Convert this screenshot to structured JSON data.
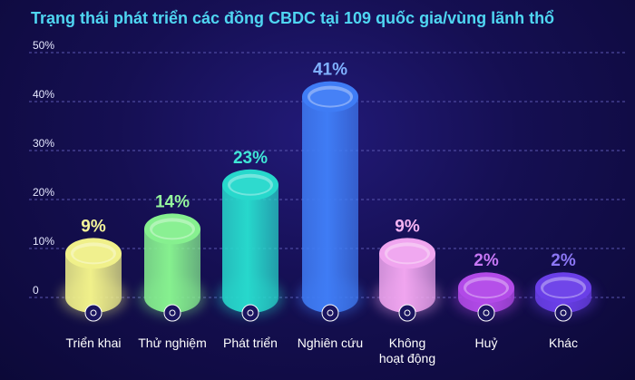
{
  "chart_data": {
    "type": "bar",
    "title": "Trạng thái phát triển các đồng CBDC tại 109 quốc gia/vùng lãnh thổ",
    "categories": [
      "Triển khai",
      "Thử nghiệm",
      "Phát triển",
      "Nghiên cứu",
      "Không hoạt động",
      "Huỷ",
      "Khác"
    ],
    "values": [
      9,
      14,
      23,
      41,
      9,
      2,
      2
    ],
    "value_labels": [
      "9%",
      "14%",
      "23%",
      "41%",
      "9%",
      "2%",
      "2%"
    ],
    "yticks": [
      "0",
      "10%",
      "20%",
      "30%",
      "40%",
      "50%"
    ],
    "ylim": [
      0,
      50
    ],
    "grid": true,
    "colors": [
      "#f0f08a",
      "#86f08f",
      "#27d8cc",
      "#3f7cf5",
      "#f0a5ef",
      "#b24ae8",
      "#6a3fe8"
    ],
    "label_colors": [
      "#f5f59a",
      "#94f59c",
      "#3fe6d6",
      "#7fb0ff",
      "#f5b3f2",
      "#c777f5",
      "#8c77f5"
    ],
    "icons": [
      "rocket-icon",
      "test-icon",
      "document-icon",
      "research-icon",
      "inactive-icon",
      "cancel-icon",
      "other-icon"
    ]
  }
}
